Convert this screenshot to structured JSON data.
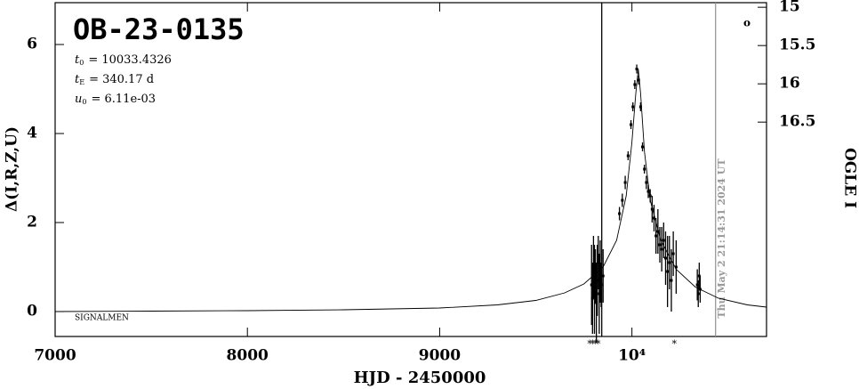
{
  "chart_data": {
    "type": "scatter",
    "title": "OB-23-0135",
    "params": [
      {
        "symbol": "t",
        "sub": "0",
        "text": "= 10033.4326"
      },
      {
        "symbol": "t",
        "sub": "E",
        "text": "= 340.17 d"
      },
      {
        "symbol": "u",
        "sub": "0",
        "text": "= 6.11e-03"
      }
    ],
    "survey_label": "SIGNALMEN",
    "date_label": "Thu May  2 21:14:31 2024 UT",
    "corner_symbol": "o",
    "x_label": "HJD - 2450000",
    "y_label": "Δ(I,R,Z,U)",
    "y2_label": "OGLE I",
    "xlim": [
      7000,
      10700
    ],
    "ylim": [
      -0.56,
      6.94
    ],
    "y2lim": [
      14.94,
      19.3
    ],
    "xticks": [
      7000,
      8000,
      9000,
      {
        "value": 10000,
        "label": "10⁴"
      }
    ],
    "yticks": [
      0,
      2,
      4,
      6
    ],
    "y2ticks": [
      15,
      15.5,
      16,
      16.5
    ],
    "markers": [
      {
        "x": 9843,
        "color": "#000000"
      },
      {
        "x": 10435,
        "color": "#999999"
      }
    ],
    "lower_marks": {
      "label": "*",
      "x": [
        9780,
        9795,
        9810,
        9825,
        10220
      ]
    },
    "model": {
      "color": "#000000",
      "x": [
        7000,
        7500,
        8000,
        8500,
        9000,
        9300,
        9500,
        9650,
        9750,
        9850,
        9920,
        9970,
        10000,
        10020,
        10033,
        10045,
        10065,
        10095,
        10150,
        10230,
        10330,
        10450,
        10600,
        10700
      ],
      "y": [
        0.0,
        0.01,
        0.02,
        0.04,
        0.08,
        0.15,
        0.25,
        0.42,
        0.62,
        1.0,
        1.6,
        2.6,
        3.8,
        4.9,
        5.45,
        4.9,
        3.6,
        2.5,
        1.6,
        0.95,
        0.55,
        0.3,
        0.15,
        0.1
      ]
    },
    "series": [
      {
        "color": "#000000",
        "x": [
          9790,
          9795,
          9800,
          9805,
          9810,
          9815,
          9820,
          9825,
          9830,
          9835,
          9840,
          9850,
          9935,
          9950,
          9965,
          9980,
          9995,
          10005,
          10015,
          10025,
          10035,
          10045,
          10055,
          10065,
          10075,
          10085,
          10095,
          10105,
          10115,
          10125,
          10135,
          10145,
          10155,
          10165,
          10175,
          10185,
          10195,
          10205,
          10215,
          10230,
          10340,
          10345,
          10350,
          10355
        ],
        "values": [
          0.6,
          0.3,
          1.0,
          0.5,
          0.8,
          0.2,
          0.7,
          1.1,
          0.4,
          0.9,
          0.6,
          0.8,
          2.2,
          2.5,
          2.9,
          3.5,
          4.2,
          4.6,
          5.1,
          5.45,
          5.2,
          4.6,
          3.7,
          3.2,
          2.9,
          2.7,
          2.6,
          2.3,
          2.1,
          1.7,
          1.8,
          1.5,
          1.4,
          1.6,
          1.2,
          0.9,
          1.1,
          0.7,
          1.3,
          1.0,
          0.6,
          0.4,
          0.8,
          0.5
        ],
        "errors": [
          0.9,
          0.8,
          0.7,
          1.0,
          0.6,
          0.9,
          0.8,
          0.6,
          0.9,
          0.7,
          0.5,
          0.6,
          0.15,
          0.15,
          0.15,
          0.1,
          0.1,
          0.1,
          0.1,
          0.1,
          0.1,
          0.1,
          0.1,
          0.1,
          0.15,
          0.15,
          0.15,
          0.3,
          0.3,
          0.4,
          0.5,
          0.4,
          0.5,
          0.4,
          0.6,
          0.8,
          0.6,
          0.7,
          0.5,
          0.6,
          0.35,
          0.3,
          0.3,
          0.3
        ]
      }
    ]
  }
}
